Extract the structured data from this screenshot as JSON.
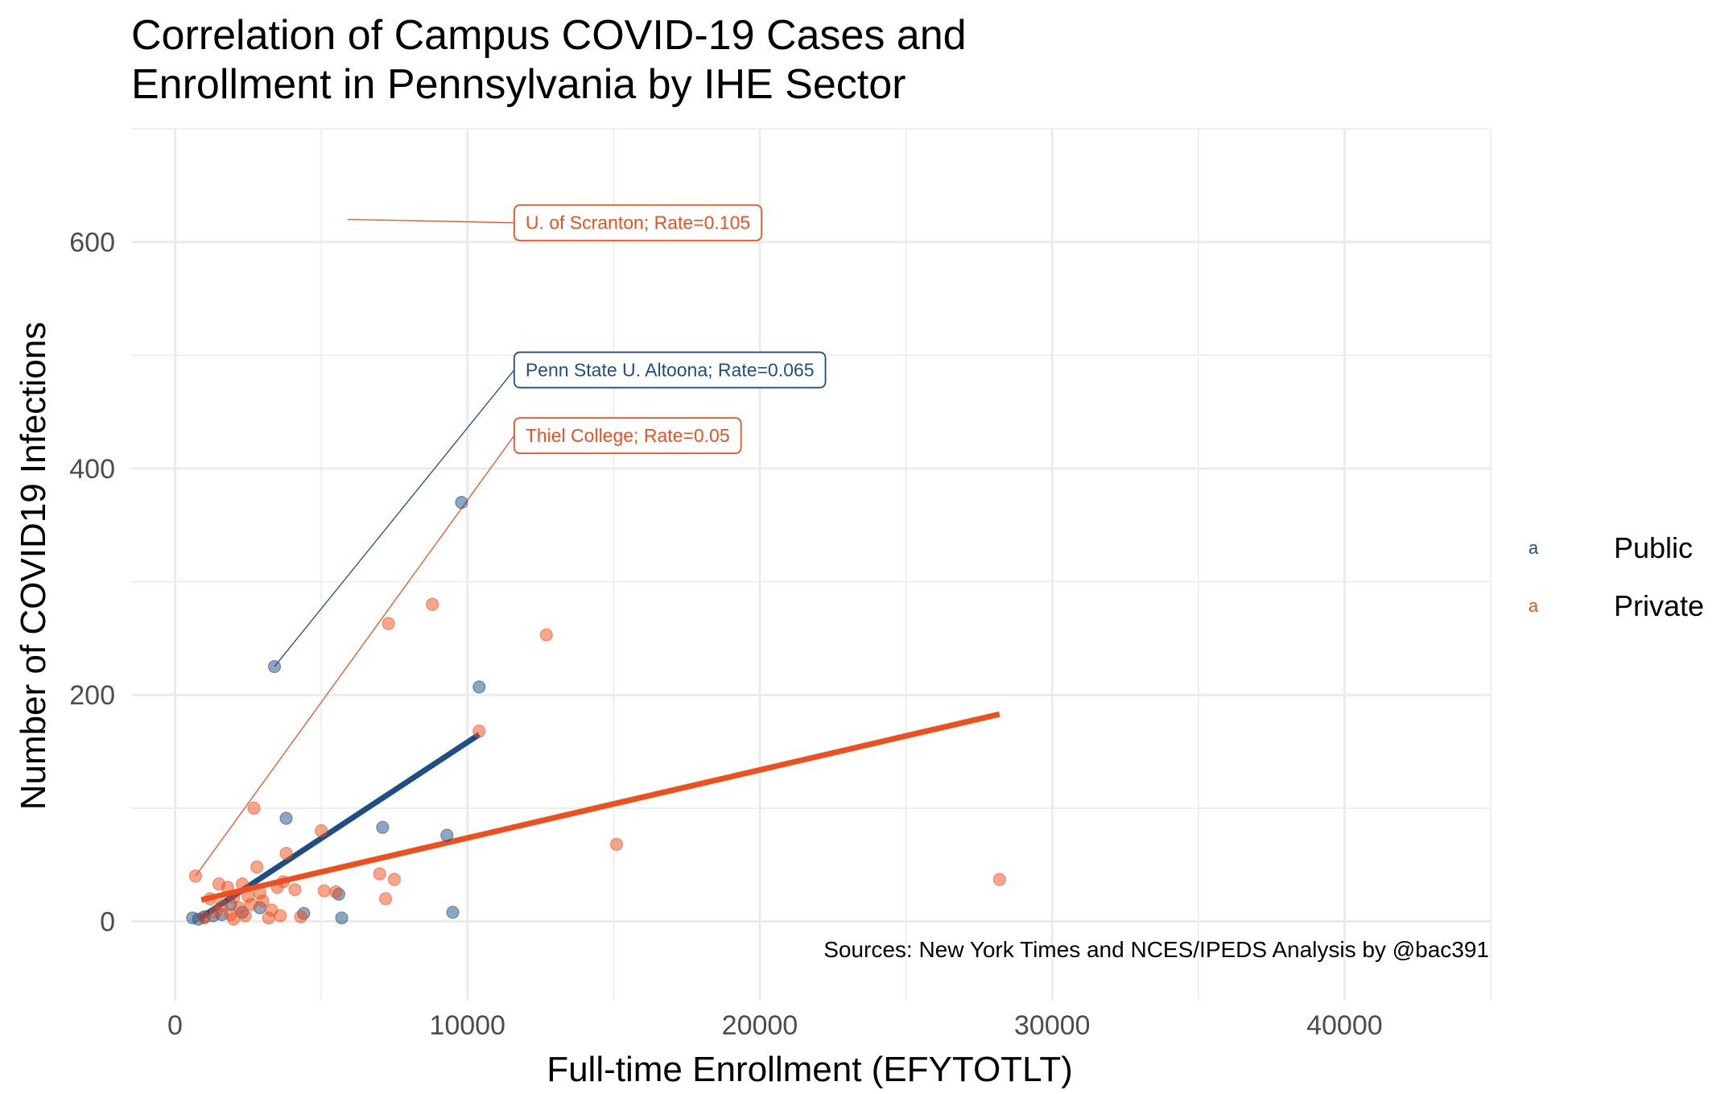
{
  "chart_data": {
    "type": "scatter",
    "title": "Correlation of Campus COVID-19 Cases and\nEnrollment in Pennsylvania by IHE Sector",
    "xlabel": "Full-time Enrollment (EFYTOTLT)",
    "ylabel": "Number of COVID19 Infections",
    "caption": "Sources: New York Times and NCES/IPEDS   Analysis by @bac391",
    "xlim": [
      -1500,
      45000
    ],
    "ylim": [
      -70,
      700
    ],
    "x_ticks": [
      0,
      10000,
      20000,
      30000,
      40000
    ],
    "y_ticks": [
      0,
      200,
      400,
      600
    ],
    "x_tick_labels": [
      "0",
      "10000",
      "20000",
      "30000",
      "40000"
    ],
    "y_tick_labels": [
      "0",
      "200",
      "400",
      "600"
    ],
    "grid": true,
    "legend_position": "right",
    "colors": {
      "Public": "#1f4e85",
      "Private": "#f04e1c"
    },
    "series": [
      {
        "name": "Public",
        "color": "#1f4e85",
        "points": [
          {
            "x": 3400,
            "y": 225
          },
          {
            "x": 9800,
            "y": 370
          },
          {
            "x": 10400,
            "y": 207
          },
          {
            "x": 3800,
            "y": 91
          },
          {
            "x": 7100,
            "y": 83
          },
          {
            "x": 9300,
            "y": 76
          },
          {
            "x": 5600,
            "y": 24
          },
          {
            "x": 5700,
            "y": 3
          },
          {
            "x": 9500,
            "y": 8
          },
          {
            "x": 4400,
            "y": 7
          },
          {
            "x": 2900,
            "y": 12
          },
          {
            "x": 1900,
            "y": 15
          },
          {
            "x": 600,
            "y": 3
          },
          {
            "x": 800,
            "y": 2
          },
          {
            "x": 1000,
            "y": 4
          },
          {
            "x": 1300,
            "y": 5
          },
          {
            "x": 1600,
            "y": 6
          },
          {
            "x": 2300,
            "y": 8
          }
        ],
        "trend": {
          "x": [
            800,
            10400
          ],
          "y": [
            2,
            165
          ]
        }
      },
      {
        "name": "Private",
        "color": "#f04e1c",
        "points": [
          {
            "x": 8800,
            "y": 280
          },
          {
            "x": 7300,
            "y": 263
          },
          {
            "x": 12700,
            "y": 253
          },
          {
            "x": 10400,
            "y": 168
          },
          {
            "x": 2700,
            "y": 100
          },
          {
            "x": 5000,
            "y": 80
          },
          {
            "x": 15100,
            "y": 68
          },
          {
            "x": 3800,
            "y": 60
          },
          {
            "x": 2800,
            "y": 48
          },
          {
            "x": 700,
            "y": 40
          },
          {
            "x": 7000,
            "y": 42
          },
          {
            "x": 7500,
            "y": 37
          },
          {
            "x": 28200,
            "y": 37
          },
          {
            "x": 3700,
            "y": 35
          },
          {
            "x": 2300,
            "y": 33
          },
          {
            "x": 1500,
            "y": 33
          },
          {
            "x": 1800,
            "y": 30
          },
          {
            "x": 3500,
            "y": 30
          },
          {
            "x": 4100,
            "y": 28
          },
          {
            "x": 5100,
            "y": 27
          },
          {
            "x": 5500,
            "y": 26
          },
          {
            "x": 2900,
            "y": 25
          },
          {
            "x": 2500,
            "y": 22
          },
          {
            "x": 2000,
            "y": 21
          },
          {
            "x": 1200,
            "y": 20
          },
          {
            "x": 7200,
            "y": 20
          },
          {
            "x": 3000,
            "y": 18
          },
          {
            "x": 2600,
            "y": 15
          },
          {
            "x": 1600,
            "y": 14
          },
          {
            "x": 2200,
            "y": 12
          },
          {
            "x": 3300,
            "y": 10
          },
          {
            "x": 1400,
            "y": 8
          },
          {
            "x": 1900,
            "y": 6
          },
          {
            "x": 2400,
            "y": 5
          },
          {
            "x": 3600,
            "y": 5
          },
          {
            "x": 4300,
            "y": 4
          },
          {
            "x": 3200,
            "y": 3
          },
          {
            "x": 2000,
            "y": 2
          },
          {
            "x": 1000,
            "y": 3
          }
        ],
        "trend": {
          "x": [
            900,
            28200
          ],
          "y": [
            19,
            183
          ]
        }
      }
    ],
    "annotations": [
      {
        "text": "U. of Scranton; Rate=0.105",
        "series": "Private",
        "point": {
          "x": 5900,
          "y": 620
        },
        "label_at": {
          "x": 11600,
          "y": 617
        }
      },
      {
        "text": "Penn State U. Altoona; Rate=0.065",
        "series": "Public",
        "point": {
          "x": 3400,
          "y": 225
        },
        "label_at": {
          "x": 11600,
          "y": 487
        }
      },
      {
        "text": "Thiel College; Rate=0.05",
        "series": "Private",
        "point": {
          "x": 700,
          "y": 40
        },
        "label_at": {
          "x": 11600,
          "y": 429
        }
      }
    ]
  },
  "legend": {
    "key_glyph": "a",
    "entries": [
      {
        "label": "Public",
        "color": "#1f4e85"
      },
      {
        "label": "Private",
        "color": "#f04e1c"
      }
    ]
  }
}
